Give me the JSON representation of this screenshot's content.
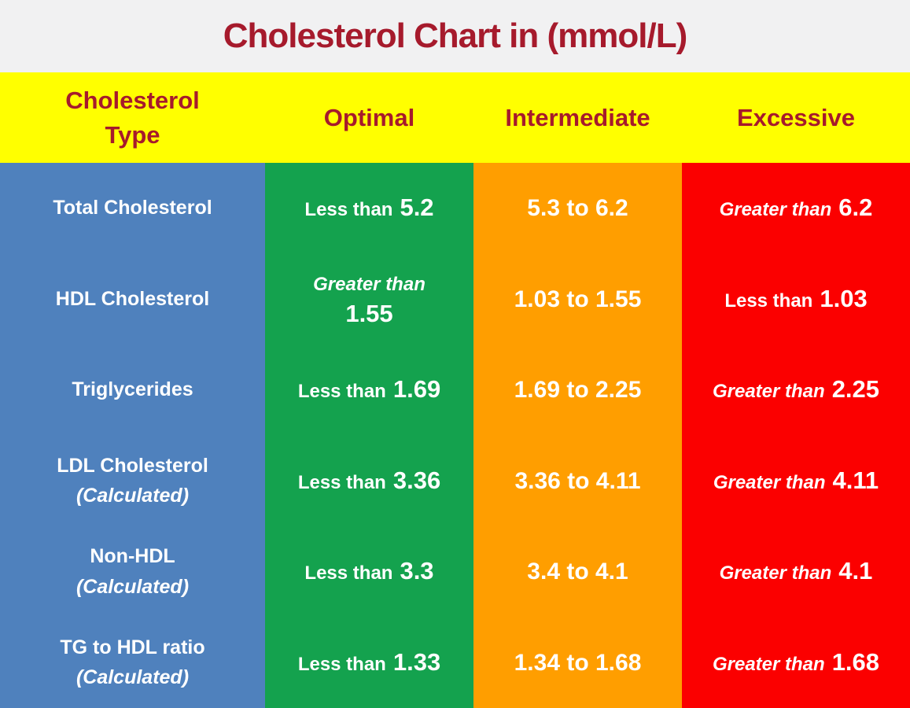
{
  "title": "Cholesterol Chart in (mmol/L)",
  "header": {
    "type_line1": "Cholesterol",
    "type_line2": "Type",
    "optimal": "Optimal",
    "intermediate": "Intermediate",
    "excessive": "Excessive"
  },
  "chart_data": {
    "type": "table",
    "title": "Cholesterol Chart in (mmol/L)",
    "unit": "mmol/L",
    "columns": [
      "Cholesterol Type",
      "Optimal",
      "Intermediate",
      "Excessive"
    ],
    "rows": [
      {
        "type": [
          "Total Cholesterol",
          ""
        ],
        "optimal": {
          "qualifier": "Less than",
          "value": "5.2"
        },
        "intermediate": "5.3 to 6.2",
        "excessive": {
          "qualifier": "Greater than",
          "value": "6.2"
        }
      },
      {
        "type": [
          "HDL Cholesterol",
          ""
        ],
        "optimal": {
          "qualifier": "Greater than",
          "value": "1.55"
        },
        "intermediate": "1.03 to 1.55",
        "excessive": {
          "qualifier": "Less than",
          "value": "1.03"
        }
      },
      {
        "type": [
          "Triglycerides",
          ""
        ],
        "optimal": {
          "qualifier": "Less than",
          "value": "1.69"
        },
        "intermediate": "1.69 to 2.25",
        "excessive": {
          "qualifier": "Greater than",
          "value": "2.25"
        }
      },
      {
        "type": [
          "LDL Cholesterol",
          "(Calculated)"
        ],
        "optimal": {
          "qualifier": "Less than",
          "value": "3.36"
        },
        "intermediate": "3.36 to 4.11",
        "excessive": {
          "qualifier": "Greater than",
          "value": "4.11"
        }
      },
      {
        "type": [
          "Non-HDL",
          "(Calculated)"
        ],
        "optimal": {
          "qualifier": "Less than",
          "value": "3.3"
        },
        "intermediate": "3.4 to 4.1",
        "excessive": {
          "qualifier": "Greater than",
          "value": "4.1"
        }
      },
      {
        "type": [
          "TG to HDL ratio",
          "(Calculated)"
        ],
        "optimal": {
          "qualifier": "Less than",
          "value": "1.33"
        },
        "intermediate": "1.34 to 1.68",
        "excessive": {
          "qualifier": "Greater than",
          "value": "1.68"
        }
      }
    ]
  },
  "colors": {
    "page_bg": "#F1F1F2",
    "title_text": "#A61A2C",
    "header_bg": "#FFFF00",
    "header_text": "#A61A2C",
    "type_column_bg": "#4F81BD",
    "optimal_bg": "#14A24E",
    "intermediate_bg": "#FF9E00",
    "excessive_bg": "#FB0000",
    "cell_text": "#FFFFFF"
  }
}
